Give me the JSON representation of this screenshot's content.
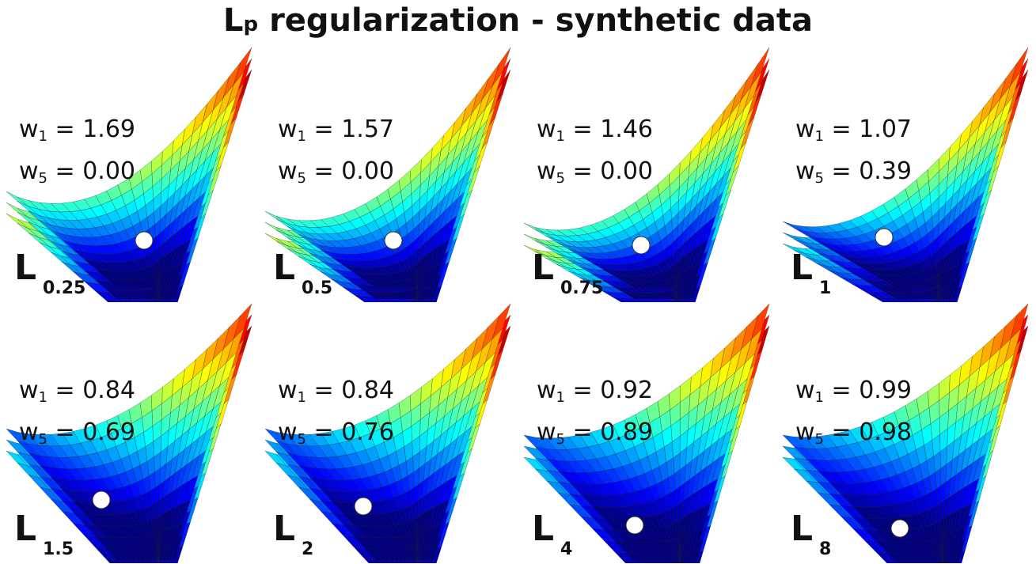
{
  "title": {
    "main": "L",
    "sub": "p",
    "rest": " regularization - synthetic data"
  },
  "weight_labels": {
    "w1": "w",
    "w1_sub": "1",
    "w5": "w",
    "w5_sub": "5",
    "eq": " = "
  },
  "panels": [
    {
      "norm_symbol": "L",
      "p_label": "0.25",
      "w1": "1.69",
      "w5": "0.00"
    },
    {
      "norm_symbol": "L",
      "p_label": "0.5",
      "w1": "1.57",
      "w5": "0.00"
    },
    {
      "norm_symbol": "L",
      "p_label": "0.75",
      "w1": "1.46",
      "w5": "0.00"
    },
    {
      "norm_symbol": "L",
      "p_label": "1",
      "w1": "1.07",
      "w5": "0.39"
    },
    {
      "norm_symbol": "L",
      "p_label": "1.5",
      "w1": "0.84",
      "w5": "0.69"
    },
    {
      "norm_symbol": "L",
      "p_label": "2",
      "w1": "0.84",
      "w5": "0.76"
    },
    {
      "norm_symbol": "L",
      "p_label": "4",
      "w1": "0.92",
      "w5": "0.89"
    },
    {
      "norm_symbol": "L",
      "p_label": "8",
      "w1": "0.99",
      "w5": "0.98"
    }
  ],
  "colormap": "jet",
  "marker_color": "#ffffff"
}
